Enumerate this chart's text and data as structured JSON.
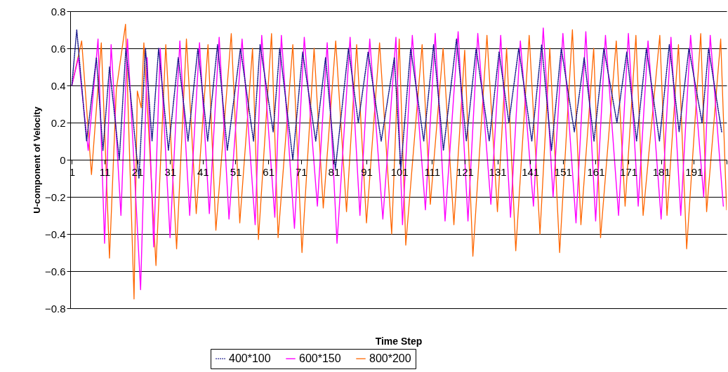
{
  "chart_data": {
    "type": "line",
    "xlabel": "Time Step",
    "ylabel": "U-component of Velocity",
    "xlim": [
      0.5,
      201
    ],
    "xticks": [
      1,
      11,
      21,
      31,
      41,
      51,
      61,
      71,
      81,
      91,
      101,
      111,
      121,
      131,
      141,
      151,
      161,
      171,
      181,
      191,
      {
        "value": 201,
        "label": null
      }
    ],
    "ylim": [
      -0.8,
      0.8
    ],
    "yticks": [
      -0.8,
      -0.6,
      -0.4,
      -0.2,
      0,
      0.2,
      0.4,
      0.6,
      0.8
    ],
    "grid": "y",
    "legend": "bottom",
    "series": [
      {
        "name": "400*100",
        "color": "#1a1a8c",
        "line_style": "dotted",
        "x": [
          1,
          2.5,
          5.5,
          8.5,
          10.5,
          12.5,
          15.5,
          17.5,
          21.5,
          23.5,
          25.5,
          27.5,
          30.5,
          33.5,
          36.5,
          39.5,
          42.5,
          45.5,
          48.5,
          52.5,
          56.5,
          58.5,
          62.5,
          64.5,
          68.5,
          71.5,
          75.5,
          78.5,
          81.5,
          85.5,
          88.5,
          91.5,
          95.5,
          99.5,
          101.5,
          104.5,
          108.5,
          111.5,
          114.5,
          118.5,
          121.5,
          124.5,
          128.5,
          131.5,
          134.5,
          137.5,
          141.5,
          144.5,
          147.5,
          150.5,
          154.5,
          157.5,
          160.5,
          163.5,
          167.5,
          170.5,
          173.5,
          176.5,
          180.5,
          183.5,
          186.5,
          189.5,
          193.5,
          195.5,
          199.5
        ],
        "values": [
          0.4,
          0.7,
          0.1,
          0.55,
          0.05,
          0.5,
          0.0,
          0.6,
          -0.1,
          0.6,
          0.1,
          0.6,
          0.05,
          0.55,
          0.1,
          0.6,
          0.1,
          0.62,
          0.05,
          0.6,
          0.1,
          0.62,
          0.15,
          0.6,
          0.0,
          0.58,
          0.1,
          0.55,
          -0.05,
          0.6,
          0.2,
          0.58,
          0.1,
          0.55,
          -0.05,
          0.6,
          0.1,
          0.62,
          0.05,
          0.65,
          0.1,
          0.6,
          0.1,
          0.58,
          0.2,
          0.6,
          0.1,
          0.62,
          0.05,
          0.6,
          0.15,
          0.55,
          0.1,
          0.6,
          0.2,
          0.58,
          0.1,
          0.6,
          0.1,
          0.62,
          0.15,
          0.6,
          0.2,
          0.6,
          0.15
        ]
      },
      {
        "name": "600*150",
        "color": "#ff00ff",
        "line_style": "solid",
        "x": [
          1,
          3,
          6,
          9,
          11,
          13,
          16,
          18,
          22,
          24,
          26,
          28,
          31,
          34,
          37,
          40,
          43,
          46,
          49,
          53,
          57,
          59,
          63,
          65,
          69,
          72,
          76,
          79,
          82,
          86,
          89,
          92,
          96,
          100,
          102,
          105,
          109,
          112,
          115,
          119,
          122,
          125,
          129,
          132,
          135,
          138,
          142,
          145,
          148,
          151,
          155,
          158,
          161,
          164,
          168,
          171,
          174,
          177,
          181,
          184,
          187,
          190,
          194,
          196,
          200
        ],
        "values": [
          0.4,
          0.55,
          0.05,
          0.65,
          -0.45,
          0.62,
          -0.3,
          0.65,
          -0.7,
          0.55,
          -0.47,
          0.6,
          -0.42,
          0.64,
          -0.3,
          0.63,
          -0.29,
          0.66,
          -0.32,
          0.65,
          -0.35,
          0.67,
          -0.31,
          0.67,
          -0.37,
          0.66,
          -0.25,
          0.63,
          -0.45,
          0.66,
          -0.3,
          0.65,
          -0.32,
          0.66,
          -0.35,
          0.67,
          -0.27,
          0.68,
          -0.33,
          0.69,
          -0.33,
          0.68,
          -0.24,
          0.67,
          -0.31,
          0.64,
          -0.25,
          0.71,
          -0.2,
          0.68,
          -0.34,
          0.69,
          -0.33,
          0.67,
          -0.3,
          0.68,
          -0.25,
          0.64,
          -0.32,
          0.66,
          -0.3,
          0.67,
          -0.2,
          0.67,
          -0.25
        ]
      },
      {
        "name": "800*200",
        "color": "#ff6600",
        "line_style": "solid",
        "x": [
          1,
          4,
          7,
          10,
          12.5,
          14.6,
          17.4,
          20,
          21,
          22.2,
          23,
          26.7,
          29.7,
          33,
          36,
          39,
          42.6,
          45,
          49.7,
          52.3,
          56.2,
          58,
          62,
          64,
          68.5,
          71.3,
          75,
          77.8,
          81.6,
          84.9,
          88,
          91,
          95,
          98.7,
          101,
          103,
          108,
          110.5,
          114.4,
          117.7,
          121,
          123.5,
          127.8,
          131,
          133.8,
          136.6,
          140.7,
          144,
          147,
          150,
          153.9,
          156.5,
          160.4,
          162.5,
          167.3,
          170,
          173.3,
          175.5,
          180.6,
          182.8,
          186.3,
          188.8,
          193.1,
          194.9,
          199.2,
          201
        ],
        "values": [
          0.4,
          0.64,
          -0.08,
          0.63,
          -0.53,
          0.38,
          0.73,
          -0.75,
          0.37,
          0.28,
          0.63,
          -0.57,
          0.62,
          -0.48,
          0.65,
          -0.29,
          0.62,
          -0.38,
          0.68,
          -0.34,
          0.6,
          -0.43,
          0.68,
          -0.42,
          0.62,
          -0.5,
          0.6,
          -0.26,
          0.64,
          -0.28,
          0.62,
          -0.34,
          0.63,
          -0.4,
          0.65,
          -0.46,
          0.62,
          -0.24,
          0.6,
          -0.35,
          0.59,
          -0.52,
          0.67,
          -0.28,
          0.6,
          -0.49,
          0.67,
          -0.4,
          0.6,
          -0.5,
          0.7,
          -0.35,
          0.6,
          -0.42,
          0.64,
          -0.25,
          0.67,
          -0.3,
          0.67,
          -0.3,
          0.62,
          -0.48,
          0.68,
          -0.28,
          0.65,
          -0.27
        ]
      }
    ]
  }
}
